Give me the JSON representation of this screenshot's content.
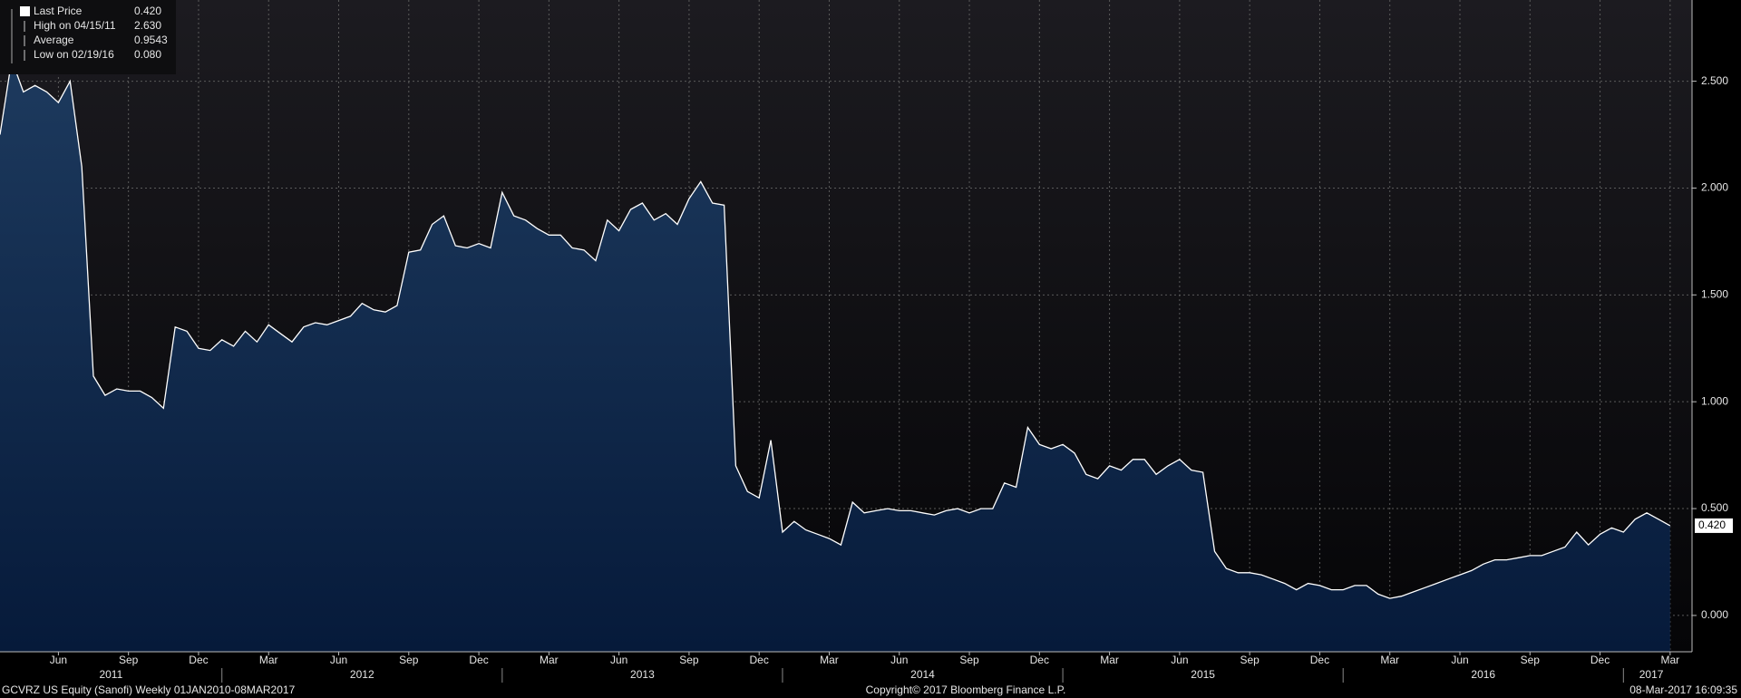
{
  "chart_data": {
    "type": "area",
    "series": [
      {
        "name": "Last Price",
        "color": "#ffffff",
        "values": [
          2.25,
          2.6,
          2.45,
          2.48,
          2.45,
          2.4,
          2.5,
          2.1,
          1.12,
          1.03,
          1.06,
          1.05,
          1.05,
          1.02,
          0.97,
          1.35,
          1.33,
          1.25,
          1.24,
          1.29,
          1.26,
          1.33,
          1.28,
          1.36,
          1.32,
          1.28,
          1.35,
          1.37,
          1.36,
          1.38,
          1.4,
          1.46,
          1.43,
          1.42,
          1.45,
          1.7,
          1.71,
          1.83,
          1.87,
          1.73,
          1.72,
          1.74,
          1.72,
          1.98,
          1.87,
          1.85,
          1.81,
          1.78,
          1.78,
          1.72,
          1.71,
          1.66,
          1.85,
          1.8,
          1.9,
          1.93,
          1.85,
          1.88,
          1.83,
          1.95,
          2.03,
          1.93,
          1.92,
          0.7,
          0.58,
          0.55,
          0.82,
          0.39,
          0.44,
          0.4,
          0.38,
          0.36,
          0.33,
          0.53,
          0.48,
          0.49,
          0.5,
          0.49,
          0.49,
          0.48,
          0.47,
          0.49,
          0.5,
          0.48,
          0.5,
          0.5,
          0.62,
          0.6,
          0.88,
          0.8,
          0.78,
          0.8,
          0.76,
          0.66,
          0.64,
          0.7,
          0.68,
          0.73,
          0.73,
          0.66,
          0.7,
          0.73,
          0.68,
          0.67,
          0.3,
          0.22,
          0.2,
          0.2,
          0.19,
          0.17,
          0.15,
          0.12,
          0.15,
          0.14,
          0.12,
          0.12,
          0.14,
          0.14,
          0.1,
          0.08,
          0.09,
          0.11,
          0.13,
          0.15,
          0.17,
          0.19,
          0.21,
          0.24,
          0.26,
          0.26,
          0.27,
          0.28,
          0.28,
          0.3,
          0.32,
          0.39,
          0.33,
          0.38,
          0.41,
          0.39,
          0.45,
          0.48,
          0.45,
          0.42
        ]
      }
    ],
    "categories": [
      null,
      null,
      null,
      null,
      null,
      "Jun",
      null,
      null,
      null,
      null,
      null,
      "Sep",
      null,
      null,
      null,
      null,
      null,
      "Dec",
      null,
      null,
      null,
      null,
      null,
      "Mar",
      null,
      null,
      null,
      null,
      null,
      "Jun",
      null,
      null,
      null,
      null,
      null,
      "Sep",
      null,
      null,
      null,
      null,
      null,
      "Dec",
      null,
      null,
      null,
      null,
      null,
      "Mar",
      null,
      null,
      null,
      null,
      null,
      "Jun",
      null,
      null,
      null,
      null,
      null,
      "Sep",
      null,
      null,
      null,
      null,
      null,
      "Dec",
      null,
      null,
      null,
      null,
      null,
      "Mar",
      null,
      null,
      null,
      null,
      null,
      "Jun",
      null,
      null,
      null,
      null,
      null,
      "Sep",
      null,
      null,
      null,
      null,
      null,
      "Dec",
      null,
      null,
      null,
      null,
      null,
      "Mar",
      null,
      null,
      null,
      null,
      null,
      "Jun",
      null,
      null,
      null,
      null,
      null,
      "Sep",
      null,
      null,
      null,
      null,
      null,
      "Dec",
      null,
      null,
      null,
      null,
      null,
      "Mar",
      null,
      null,
      null,
      null,
      null,
      "Jun",
      null,
      null,
      null,
      null,
      null,
      "Sep",
      null,
      null,
      null,
      null,
      null,
      "Dec",
      null,
      null,
      null,
      null,
      null,
      "Mar"
    ],
    "years": [
      "2011",
      "2012",
      "2013",
      "2014",
      "2015",
      "2016",
      "2017"
    ],
    "ylim": [
      -0.17,
      2.88
    ],
    "yticks": [
      {
        "value": 0,
        "label": "0.000"
      },
      {
        "value": 0.5,
        "label": "0.500"
      },
      {
        "value": 1,
        "label": "1.000"
      },
      {
        "value": 1.5,
        "label": "1.500"
      },
      {
        "value": 2,
        "label": "2.000"
      },
      {
        "value": 2.5,
        "label": "2.500"
      }
    ],
    "grid": true,
    "last_label": "0.420",
    "stats": [
      {
        "label": "Last Price",
        "value": "0.420"
      },
      {
        "label": "High on 04/15/11",
        "value": "2.630"
      },
      {
        "label": "Average",
        "value": "0.9543"
      },
      {
        "label": "Low on 02/19/16",
        "value": "0.080"
      }
    ],
    "footer": {
      "left": "GCVRZ US Equity (Sanofi)  Weekly 01JAN2010-08MAR2017",
      "center": "Copyright© 2017 Bloomberg Finance L.P.",
      "right": "08-Mar-2017 16:09:35"
    }
  }
}
